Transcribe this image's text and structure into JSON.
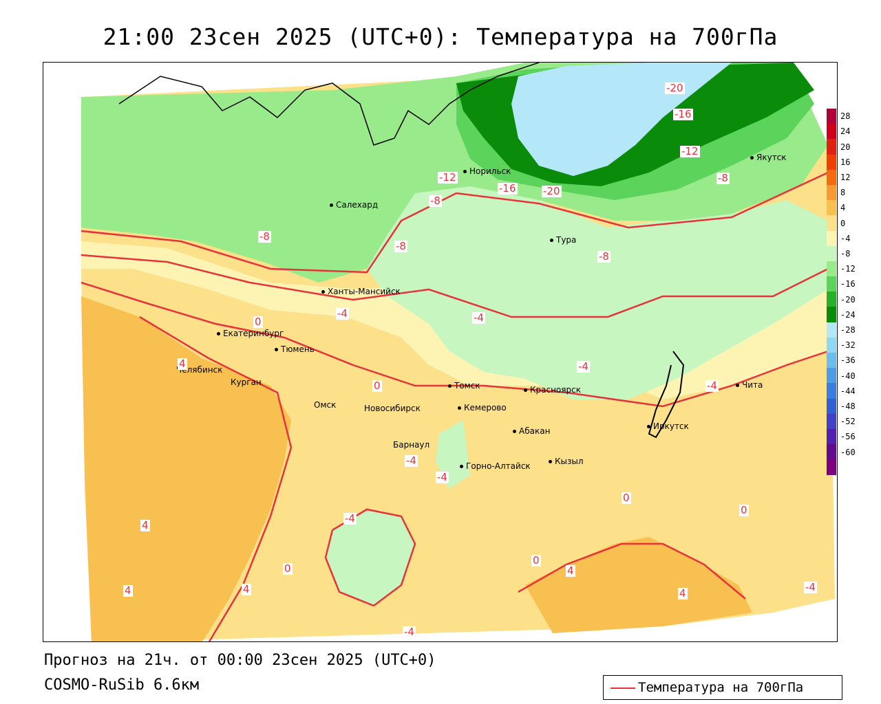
{
  "title": "21:00 23сен 2025 (UTC+0): Температура на 700гПа",
  "footer": {
    "forecast": "Прогноз на 21ч. от 00:00 23сен 2025 (UTC+0)",
    "model": "COSMO-RuSib 6.6км",
    "legend_label": "Температура на 700гПа",
    "legend_line_color": "#e8323a"
  },
  "cities": [
    {
      "name": "Норильск"
    },
    {
      "name": "Якутск"
    },
    {
      "name": "Салехард"
    },
    {
      "name": "Тура"
    },
    {
      "name": "Ханты-Мансийск"
    },
    {
      "name": "Екатеринбург"
    },
    {
      "name": "Тюмень"
    },
    {
      "name": "Челябинск"
    },
    {
      "name": "Курган"
    },
    {
      "name": "Омск"
    },
    {
      "name": "Новосибирск"
    },
    {
      "name": "Томск"
    },
    {
      "name": "Кемерово"
    },
    {
      "name": "Красноярск"
    },
    {
      "name": "Абакан"
    },
    {
      "name": "Барнаул"
    },
    {
      "name": "Горно-Алтайск"
    },
    {
      "name": "Кызыл"
    },
    {
      "name": "Иркутск"
    },
    {
      "name": "Чита"
    }
  ],
  "contour_labels": [
    "-20",
    "-16",
    "-12",
    "-8",
    "-12",
    "-16",
    "-20",
    "-8",
    "-8",
    "-8",
    "-8",
    "0",
    "4",
    "-4",
    "-4",
    "-4",
    "0",
    "-4",
    "-4",
    "-4",
    "-4",
    "4",
    "4",
    "0",
    "0",
    "4",
    "4",
    "0",
    "0",
    "4",
    "-4",
    "-4"
  ],
  "color_scale": {
    "ticks": [
      "28",
      "24",
      "20",
      "16",
      "12",
      "8",
      "4",
      "0",
      "-4",
      "-8",
      "-12",
      "-16",
      "-20",
      "-24",
      "-28",
      "-32",
      "-36",
      "-40",
      "-44",
      "-48",
      "-52",
      "-56",
      "-60"
    ],
    "colors": [
      "#b0003a",
      "#d0001a",
      "#e02010",
      "#f04000",
      "#f46a10",
      "#f89a30",
      "#f8c050",
      "#fce08a",
      "#fdf4b4",
      "#c8f6c0",
      "#98ea8a",
      "#5cd45c",
      "#28b028",
      "#0a8c0a",
      "#b4e8f8",
      "#90d8f4",
      "#6cbcf0",
      "#4c9ce8",
      "#3a7ce0",
      "#3060d4",
      "#4040c8",
      "#5020b0",
      "#600a90",
      "#7a0080"
    ]
  }
}
